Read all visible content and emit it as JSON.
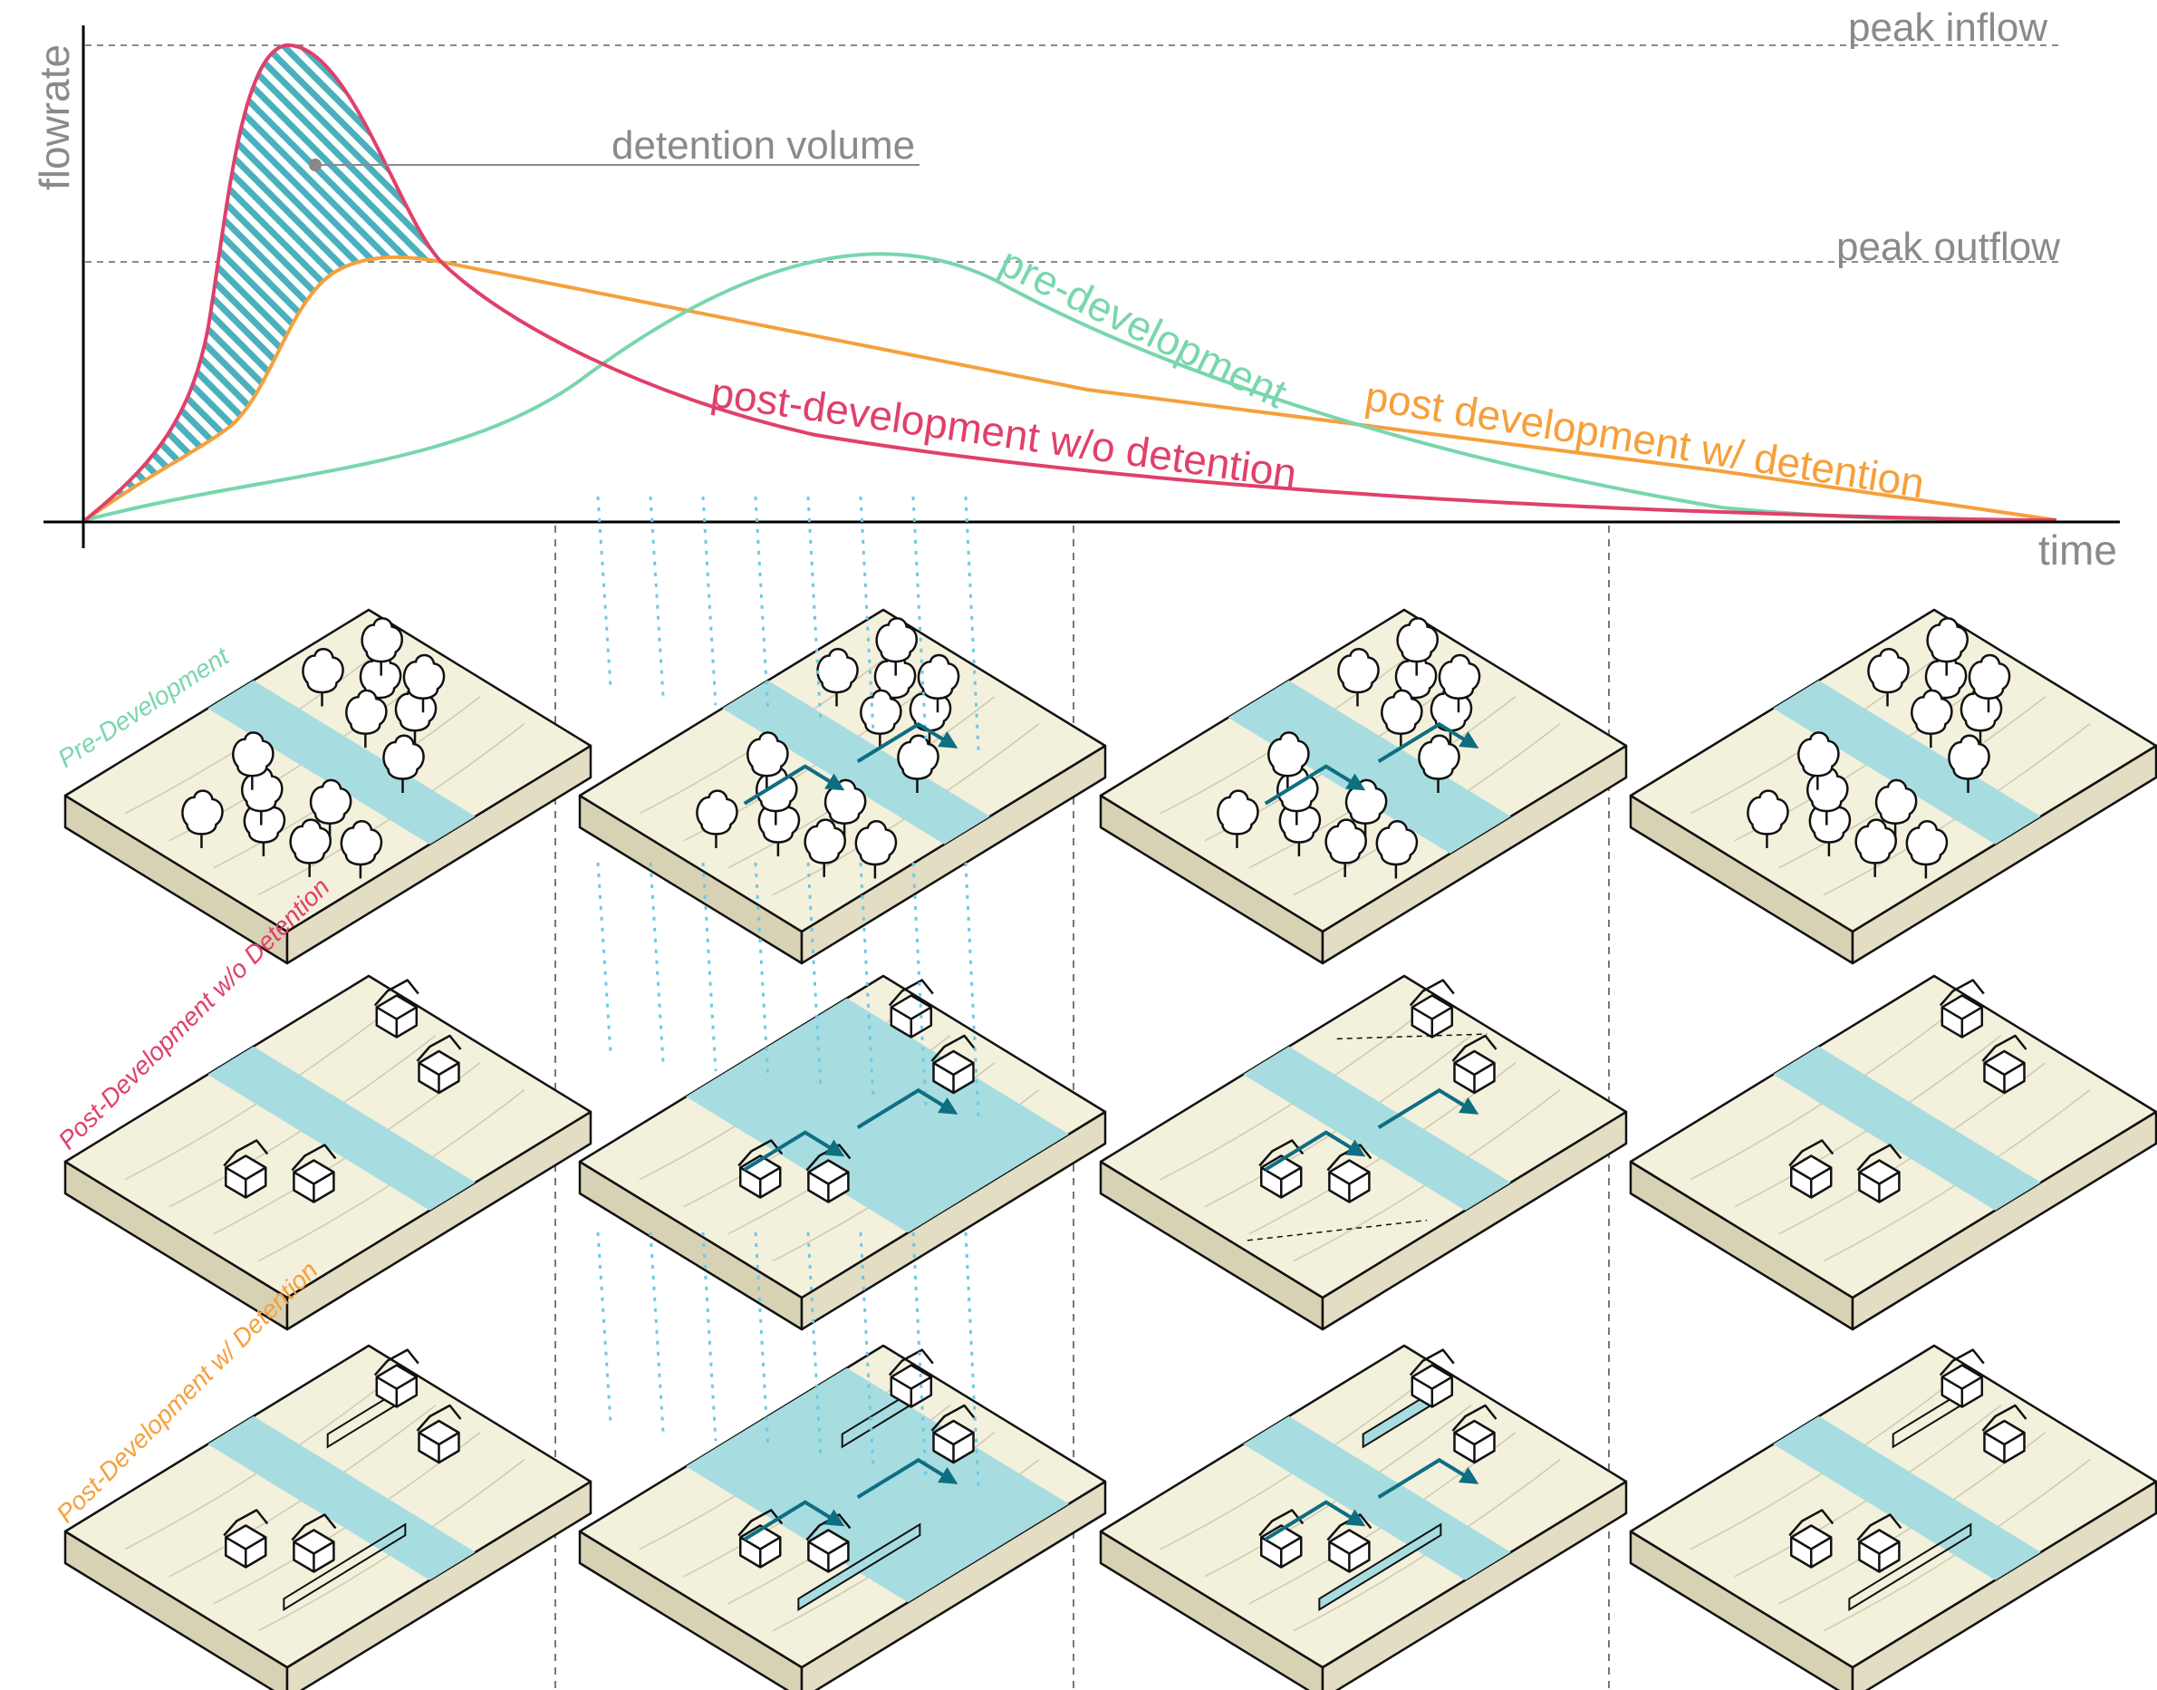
{
  "chart": {
    "axis_labels": {
      "y": "flowrate",
      "x": "time"
    },
    "reference_lines": {
      "peak_inflow": "peak inflow",
      "peak_outflow": "peak outflow"
    },
    "annotation": "detention volume",
    "curve_labels": {
      "pre": "pre-development",
      "post_wo": "post-development w/o detention",
      "post_w": "post development w/ detention"
    }
  },
  "rows": [
    {
      "label": "Pre-Development"
    },
    {
      "label": "Post-Development w/o Detention"
    },
    {
      "label": "Post-Development w/ Detention"
    }
  ],
  "colors": {
    "pre": "#79d6ad",
    "post_wo": "#e0406a",
    "post_w": "#f5a03c",
    "hatch": "#4bb0bd",
    "water": "#a7dde0",
    "arrow": "#0e6e82",
    "rain": "#6cc9e8",
    "land_top": "#f3f0dc",
    "land_side": "#e2ddc3",
    "land_front": "#d8d2b4",
    "gray": "#8a8a8a"
  },
  "chart_data": {
    "type": "line",
    "xlabel": "time",
    "ylabel": "flowrate",
    "series": [
      {
        "name": "post-development w/o detention",
        "x": [
          0,
          0.05,
          0.08,
          0.1,
          0.12,
          0.14,
          0.16,
          0.18,
          0.2,
          0.25,
          0.3,
          0.4,
          0.5,
          0.6,
          0.7,
          0.8,
          0.9,
          0.95
        ],
        "y": [
          0,
          0.5,
          0.72,
          0.92,
          1.0,
          0.95,
          0.78,
          0.6,
          0.54,
          0.41,
          0.33,
          0.22,
          0.14,
          0.1,
          0.06,
          0.035,
          0.015,
          0
        ]
      },
      {
        "name": "post development w/ detention",
        "x": [
          0,
          0.05,
          0.08,
          0.1,
          0.12,
          0.14,
          0.16,
          0.18,
          0.3,
          0.4,
          0.5,
          0.6,
          0.7,
          0.8,
          0.9,
          0.95
        ],
        "y": [
          0,
          0.2,
          0.35,
          0.45,
          0.5,
          0.52,
          0.54,
          0.54,
          0.48,
          0.43,
          0.38,
          0.32,
          0.25,
          0.18,
          0.08,
          0
        ]
      },
      {
        "name": "pre-development",
        "x": [
          0,
          0.1,
          0.2,
          0.28,
          0.34,
          0.38,
          0.42,
          0.46,
          0.5,
          0.56,
          0.62,
          0.7,
          0.8,
          0.9,
          0.95
        ],
        "y": [
          0,
          0.08,
          0.17,
          0.31,
          0.46,
          0.54,
          0.52,
          0.44,
          0.35,
          0.24,
          0.16,
          0.09,
          0.04,
          0.01,
          0
        ]
      }
    ],
    "reference_lines": [
      {
        "label": "peak inflow",
        "y": 1.0
      },
      {
        "label": "peak outflow",
        "y": 0.54
      }
    ],
    "grid": false,
    "legend": "inline"
  }
}
